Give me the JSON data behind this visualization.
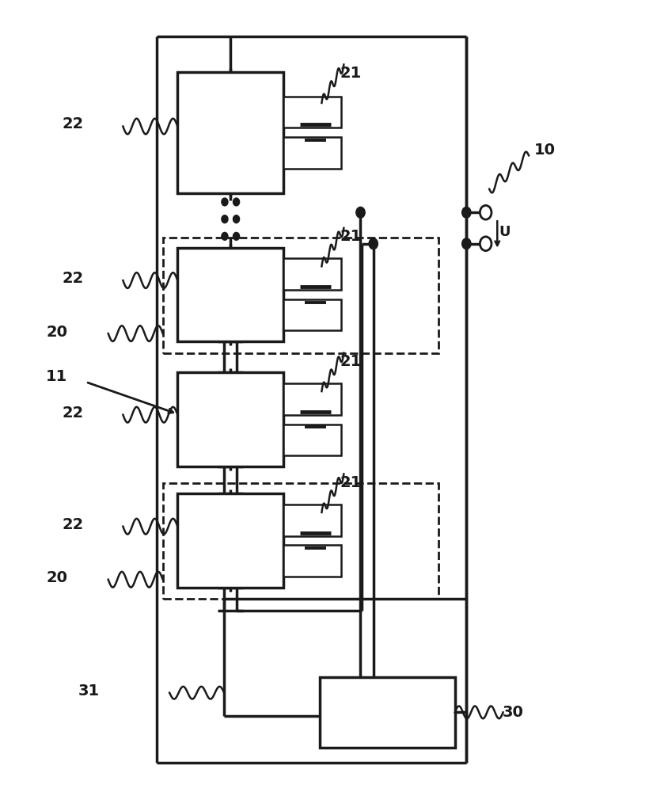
{
  "bg_color": "#ffffff",
  "line_color": "#1a1a1a",
  "lw": 2.5,
  "lw_thin": 1.8,
  "fig_w": 8.25,
  "fig_h": 10.0,
  "dpi": 100
}
